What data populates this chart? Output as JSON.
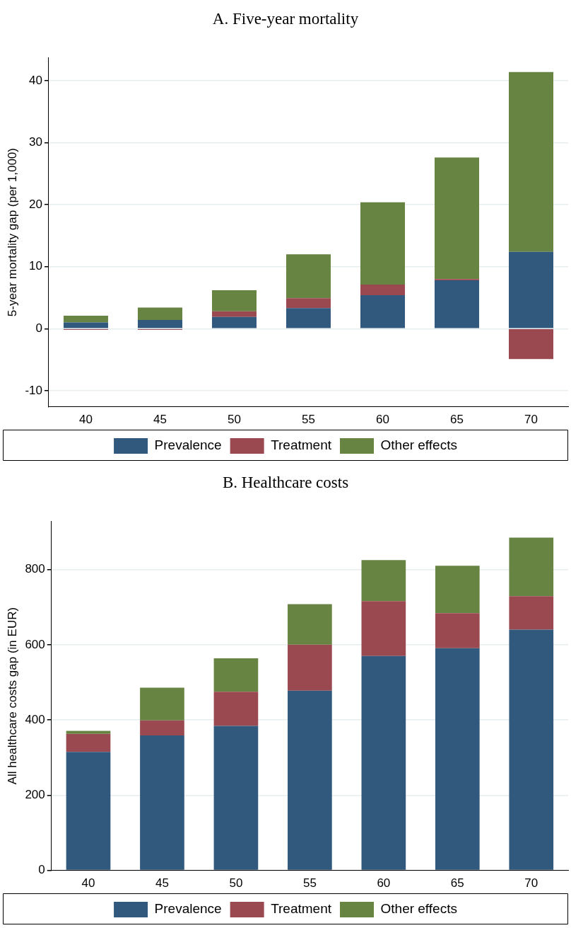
{
  "chart_data": [
    {
      "type": "bar",
      "title": "A. Five-year mortality",
      "ylabel": "5-year mortality gap (per 1,000)",
      "categories": [
        "40",
        "45",
        "50",
        "55",
        "60",
        "65",
        "70"
      ],
      "stacked": true,
      "series": [
        {
          "name": "Prevalence",
          "color": "#31597d",
          "values": [
            1.0,
            1.4,
            1.9,
            3.3,
            5.4,
            7.8,
            12.4
          ]
        },
        {
          "name": "Treatment",
          "color": "#9b4950",
          "values": [
            -0.2,
            -0.2,
            0.9,
            1.6,
            1.7,
            0.2,
            -4.9
          ]
        },
        {
          "name": "Other effects",
          "color": "#678442",
          "values": [
            1.1,
            2.0,
            3.4,
            7.1,
            13.3,
            19.6,
            29.0
          ]
        }
      ],
      "ylim": [
        -12.6,
        43.7
      ],
      "yticks": [
        -10,
        0,
        10,
        20,
        30,
        40
      ],
      "grid": "y",
      "legend": "bottom"
    },
    {
      "type": "bar",
      "title": "B. Healthcare costs",
      "ylabel": "All healthcare costs gap (in EUR)",
      "categories": [
        "40",
        "45",
        "50",
        "55",
        "60",
        "65",
        "70"
      ],
      "stacked": true,
      "series": [
        {
          "name": "Prevalence",
          "color": "#31597d",
          "values": [
            315,
            359,
            384,
            478,
            570,
            591,
            640
          ]
        },
        {
          "name": "Treatment",
          "color": "#9b4950",
          "values": [
            48,
            40,
            91,
            122,
            146,
            93,
            89
          ]
        },
        {
          "name": "Other effects",
          "color": "#678442",
          "values": [
            8,
            87,
            89,
            108,
            109,
            126,
            156
          ]
        }
      ],
      "ylim": [
        0,
        928
      ],
      "yticks": [
        0,
        200,
        400,
        600,
        800
      ],
      "grid": "y",
      "legend": "bottom"
    }
  ]
}
